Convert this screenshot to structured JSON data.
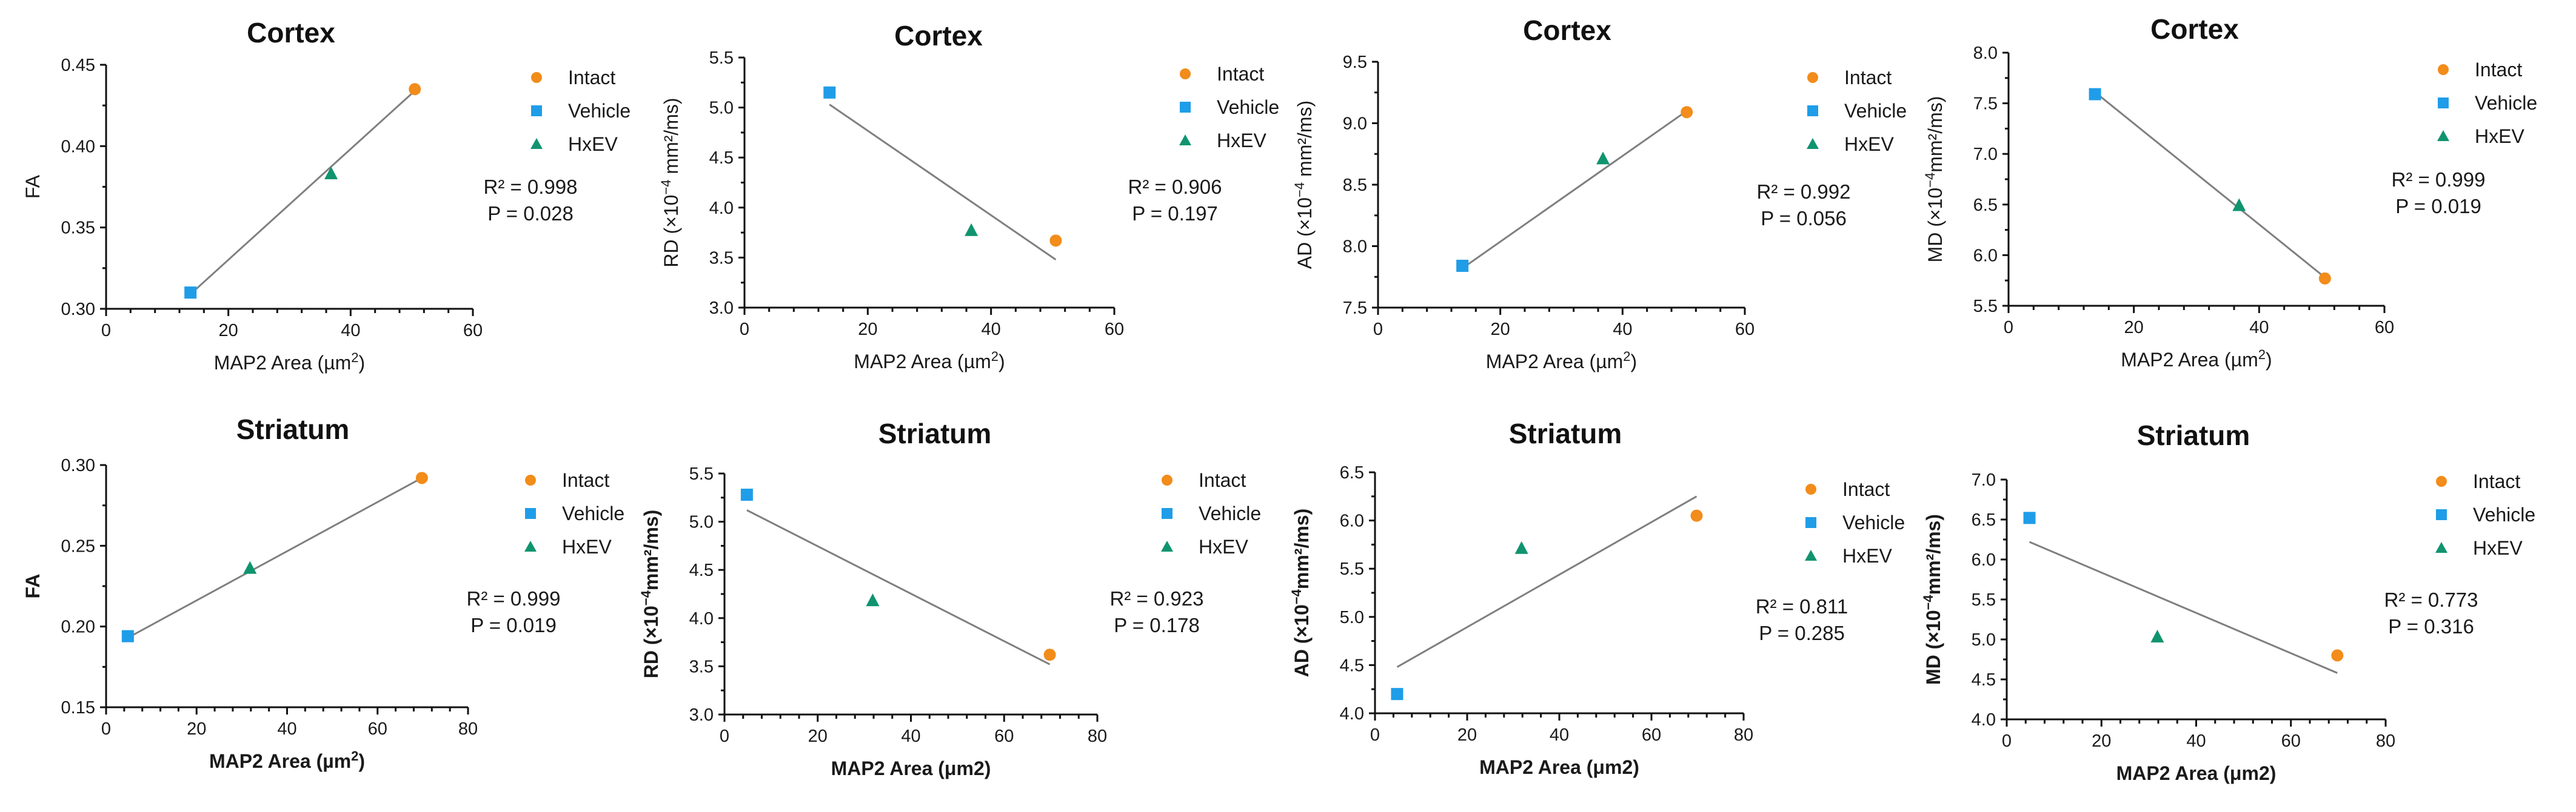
{
  "colors": {
    "intact": "#F28C1A",
    "vehicle": "#1F9DE8",
    "hxev": "#10946F"
  },
  "legend": {
    "intact": "Intact",
    "vehicle": "Vehicle",
    "hxev": "HxEV"
  },
  "chart_data": [
    {
      "type": "scatter",
      "title": "Cortex",
      "ylabel_main": "FA",
      "ylabel_unit": "",
      "xlabel": "MAP2 Area (µm",
      "xlabel_sup": "2",
      "xlabel_tail": ")",
      "xlim": [
        0,
        60
      ],
      "ylim": [
        0.3,
        0.45
      ],
      "xticks": [
        "0",
        "20",
        "40",
        "60"
      ],
      "yticks": [
        "0.30",
        "0.35",
        "0.40",
        "0.45"
      ],
      "points": {
        "intact": [
          50.5,
          0.435
        ],
        "vehicle": [
          13.8,
          0.31
        ],
        "hxev": [
          36.8,
          0.383
        ]
      },
      "fit": [
        [
          13.8,
          0.309
        ],
        [
          50.5,
          0.434
        ]
      ],
      "stats": {
        "r2": "R² = 0.998",
        "p": "P = 0.028"
      }
    },
    {
      "type": "scatter",
      "title": "Cortex",
      "ylabel_main": "RD (×10",
      "ylabel_unit": " mm²/ms)",
      "xlabel": "MAP2 Area (µm",
      "xlabel_sup": "2",
      "xlabel_tail": ")",
      "xlim": [
        0,
        60
      ],
      "ylim": [
        3.0,
        5.5
      ],
      "xticks": [
        "0",
        "20",
        "40",
        "60"
      ],
      "yticks": [
        "3.0",
        "3.5",
        "4.0",
        "4.5",
        "5.0",
        "5.5"
      ],
      "points": {
        "intact": [
          50.5,
          3.67
        ],
        "vehicle": [
          13.8,
          5.15
        ],
        "hxev": [
          36.8,
          3.77
        ]
      },
      "fit": [
        [
          13.8,
          5.03
        ],
        [
          50.5,
          3.48
        ]
      ],
      "stats": {
        "r2": "R² = 0.906",
        "p": "P = 0.197"
      }
    },
    {
      "type": "scatter",
      "title": "Cortex",
      "ylabel_main": "AD (×10",
      "ylabel_unit": " mm²/ms)",
      "xlabel": "MAP2 Area (µm",
      "xlabel_sup": "2",
      "xlabel_tail": ")",
      "xlim": [
        0,
        60
      ],
      "ylim": [
        7.5,
        9.5
      ],
      "xticks": [
        "0",
        "20",
        "40",
        "60"
      ],
      "yticks": [
        "7.5",
        "8.0",
        "8.5",
        "9.0",
        "9.5"
      ],
      "points": {
        "intact": [
          50.5,
          9.09
        ],
        "vehicle": [
          13.8,
          7.84
        ],
        "hxev": [
          36.8,
          8.71
        ]
      },
      "fit": [
        [
          13.8,
          7.82
        ],
        [
          50.5,
          9.1
        ]
      ],
      "stats": {
        "r2": "R² = 0.992",
        "p": "P = 0.056"
      }
    },
    {
      "type": "scatter",
      "title": "Cortex",
      "ylabel_main": "MD (×10",
      "ylabel_unit": "mm²/ms)",
      "xlabel": "MAP2 Area (µm",
      "xlabel_sup": "2",
      "xlabel_tail": ")",
      "xlim": [
        0,
        60
      ],
      "ylim": [
        5.5,
        8.0
      ],
      "xticks": [
        "0",
        "20",
        "40",
        "60"
      ],
      "yticks": [
        "5.5",
        "6.0",
        "6.5",
        "7.0",
        "7.5",
        "8.0"
      ],
      "points": {
        "intact": [
          50.5,
          5.77
        ],
        "vehicle": [
          13.8,
          7.59
        ],
        "hxev": [
          36.8,
          6.49
        ]
      },
      "fit": [
        [
          13.8,
          7.61
        ],
        [
          50.5,
          5.78
        ]
      ],
      "stats": {
        "r2": "R² = 0.999",
        "p": "P = 0.019"
      }
    },
    {
      "type": "scatter",
      "title": "Striatum",
      "ylabel_main": "FA",
      "ylabel_unit": "",
      "xlabel": "MAP2 Area (µm",
      "xlabel_sup": "2",
      "xlabel_tail": ")",
      "xlim": [
        0,
        80
      ],
      "ylim": [
        0.15,
        0.3
      ],
      "xticks": [
        "0",
        "20",
        "40",
        "60",
        "80"
      ],
      "yticks": [
        "0.15",
        "0.20",
        "0.25",
        "0.30"
      ],
      "points": {
        "intact": [
          69.8,
          0.292
        ],
        "vehicle": [
          4.8,
          0.194
        ],
        "hxev": [
          31.8,
          0.236
        ]
      },
      "fit": [
        [
          4.8,
          0.193
        ],
        [
          69.8,
          0.292
        ]
      ],
      "stats": {
        "r2": "R² = 0.999",
        "p": "P = 0.019"
      }
    },
    {
      "type": "scatter",
      "title": "Striatum",
      "ylabel_main": "RD (×10",
      "ylabel_unit": "mm²/ms)",
      "xlabel": "MAP2 Area (μm2)",
      "xlabel_sup": "",
      "xlabel_tail": "",
      "xlim": [
        0,
        80
      ],
      "ylim": [
        3.0,
        5.5
      ],
      "xticks": [
        "0",
        "20",
        "40",
        "60",
        "80"
      ],
      "yticks": [
        "3.0",
        "3.5",
        "4.0",
        "4.5",
        "5.0",
        "5.5"
      ],
      "points": {
        "intact": [
          69.8,
          3.62
        ],
        "vehicle": [
          4.8,
          5.28
        ],
        "hxev": [
          31.8,
          4.18
        ]
      },
      "fit": [
        [
          4.8,
          5.12
        ],
        [
          69.8,
          3.52
        ]
      ],
      "stats": {
        "r2": "R² = 0.923",
        "p": "P = 0.178"
      }
    },
    {
      "type": "scatter",
      "title": "Striatum",
      "ylabel_main": "AD (×10",
      "ylabel_unit": "mm²/ms)",
      "xlabel": "MAP2 Area (μm2)",
      "xlabel_sup": "",
      "xlabel_tail": "",
      "xlim": [
        0,
        80
      ],
      "ylim": [
        4.0,
        6.5
      ],
      "xticks": [
        "0",
        "20",
        "40",
        "60",
        "80"
      ],
      "yticks": [
        "4.0",
        "4.5",
        "5.0",
        "5.5",
        "6.0",
        "6.5"
      ],
      "points": {
        "intact": [
          69.8,
          6.05
        ],
        "vehicle": [
          4.8,
          4.2
        ],
        "hxev": [
          31.8,
          5.71
        ]
      },
      "fit": [
        [
          4.8,
          4.48
        ],
        [
          69.8,
          6.25
        ]
      ],
      "stats": {
        "r2": "R² = 0.811",
        "p": "P = 0.285"
      }
    },
    {
      "type": "scatter",
      "title": "Striatum",
      "ylabel_main": "MD (×10",
      "ylabel_unit": "mm²/ms)",
      "xlabel": "MAP2 Area (μm2)",
      "xlabel_sup": "",
      "xlabel_tail": "",
      "xlim": [
        0,
        80
      ],
      "ylim": [
        4.0,
        7.0
      ],
      "xticks": [
        "0",
        "20",
        "40",
        "60",
        "80"
      ],
      "yticks": [
        "4.0",
        "4.5",
        "5.0",
        "5.5",
        "6.0",
        "6.5",
        "7.0"
      ],
      "points": {
        "intact": [
          69.8,
          4.8
        ],
        "vehicle": [
          4.8,
          6.52
        ],
        "hxev": [
          31.8,
          5.03
        ]
      },
      "fit": [
        [
          4.8,
          6.22
        ],
        [
          69.8,
          4.58
        ]
      ],
      "stats": {
        "r2": "R² = 0.773",
        "p": "P = 0.316"
      }
    }
  ]
}
